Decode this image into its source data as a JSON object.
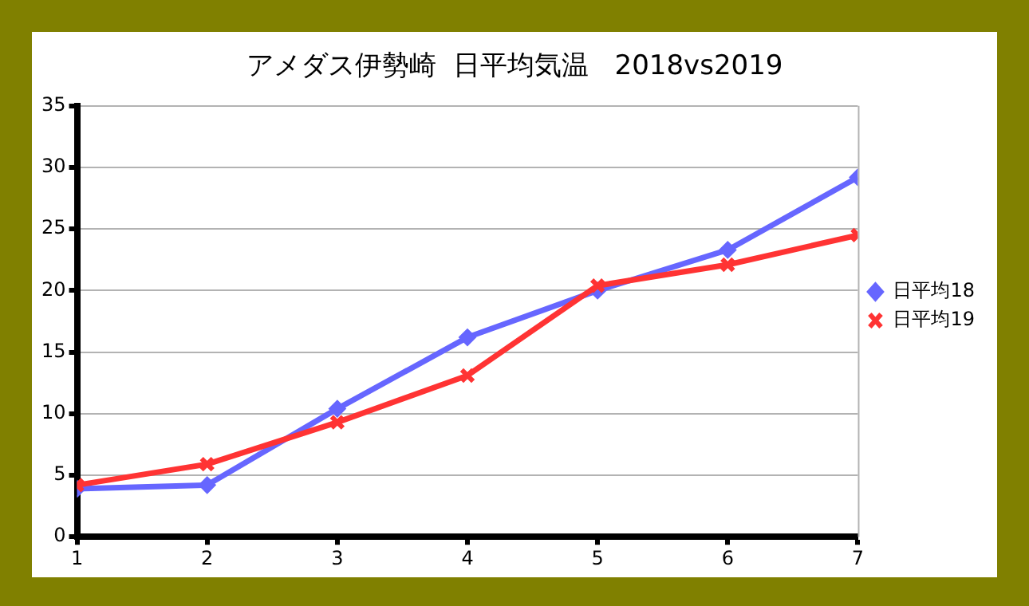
{
  "chart_data": {
    "type": "line",
    "title": "アメダス伊勢崎  日平均気温   2018vs2019",
    "x": [
      1,
      2,
      3,
      4,
      5,
      6,
      7
    ],
    "xlim": [
      1,
      7
    ],
    "xticks": [
      1,
      2,
      3,
      4,
      5,
      6,
      7
    ],
    "ylim": [
      0,
      35
    ],
    "yticks": [
      0,
      5,
      10,
      15,
      20,
      25,
      30,
      35
    ],
    "grid": "y",
    "legend": "right",
    "line_style": "solid",
    "series": [
      {
        "name": "日平均18",
        "color": "#6666ff",
        "marker": "diamond",
        "values": [
          3.9,
          4.2,
          10.4,
          16.2,
          20.0,
          23.3,
          29.2
        ]
      },
      {
        "name": "日平均19",
        "color": "#ff3333",
        "marker": "cross",
        "values": [
          4.2,
          5.9,
          9.3,
          13.1,
          20.4,
          22.1,
          24.5
        ]
      }
    ]
  }
}
